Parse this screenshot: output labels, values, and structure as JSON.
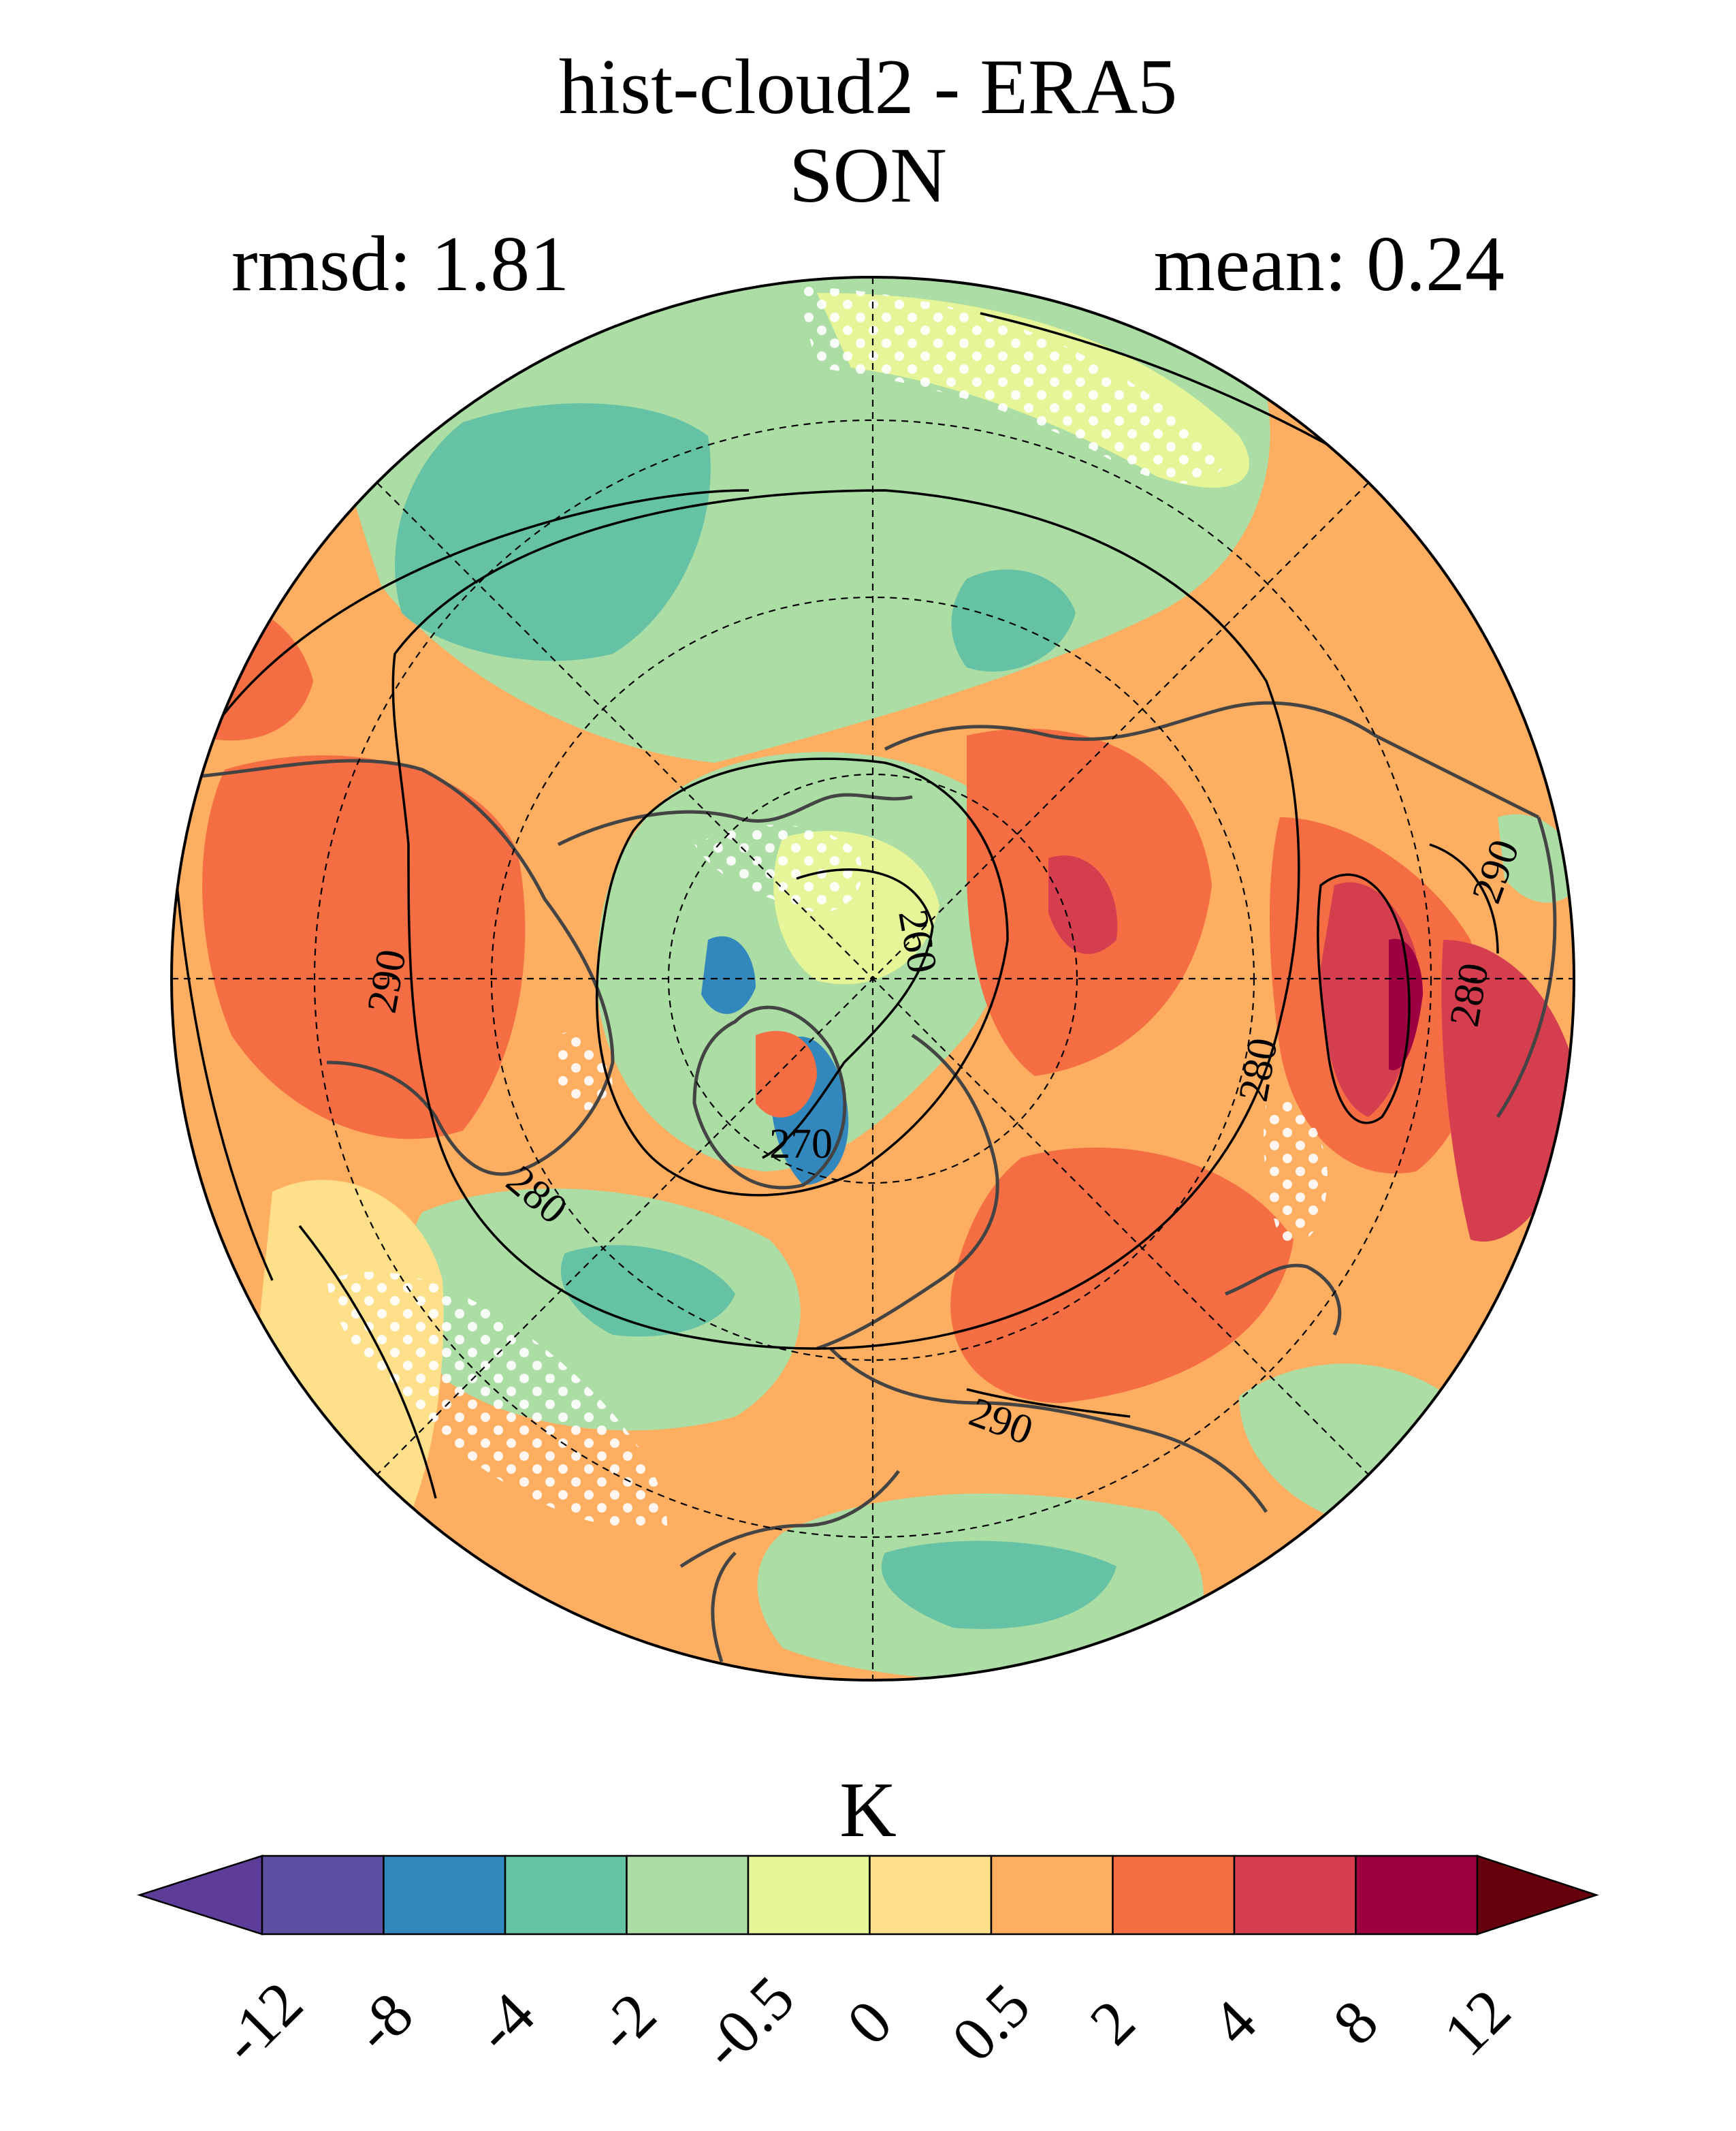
{
  "title": "hist-cloud2 - ERA5",
  "season": "SON",
  "stats": {
    "rmsd": "rmsd: 1.81",
    "mean": "mean: 0.24"
  },
  "map": {
    "projection": "north-polar-stereographic",
    "contour_labels": [
      "260",
      "270",
      "280",
      "290",
      "280",
      "280",
      "290",
      "290"
    ],
    "stippling": "white dots"
  },
  "colorbar": {
    "units": "K",
    "ticks": [
      "-12",
      "-8",
      "-4",
      "-2",
      "-0.5",
      "0",
      "0.5",
      "2",
      "4",
      "8",
      "12"
    ],
    "colors": {
      "below_min": "#5e3c99",
      "bins": [
        "#5e4fa2",
        "#3288bd",
        "#66c2a5",
        "#abdda4",
        "#e6f598",
        "#fee08b",
        "#fdae61",
        "#f46d43",
        "#d53e4f",
        "#9e0142"
      ],
      "above_max": "#67000d"
    },
    "extend": "both"
  }
}
